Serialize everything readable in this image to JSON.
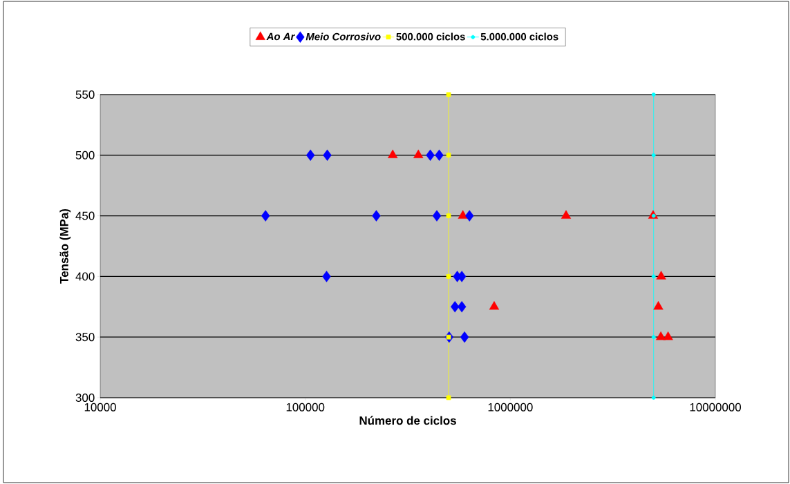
{
  "chart_data": {
    "type": "scatter",
    "xlabel": "Número de ciclos",
    "ylabel": "Tensão (MPa)",
    "log": "x",
    "xlim": [
      10000,
      10000000
    ],
    "xticks": [
      10000,
      100000,
      1000000,
      10000000
    ],
    "ylim": [
      300,
      550
    ],
    "yticks": [
      300,
      350,
      400,
      450,
      500,
      550
    ],
    "grid": "y",
    "legend": "top",
    "series": [
      {
        "name": "Ao Ar",
        "color": "#ff0000",
        "marker": "triangle",
        "x": [
          267000,
          356000,
          587000,
          1870000,
          4970000,
          5440000,
          834000,
          5270000,
          5420000,
          5880000
        ],
        "values": [
          500,
          500,
          450,
          450,
          450,
          400,
          375,
          375,
          350,
          350
        ]
      },
      {
        "name": "Meio Corrosivo",
        "color": "#0000ff",
        "marker": "diamond",
        "x": [
          106000,
          128000,
          407000,
          450000,
          64000,
          222000,
          438000,
          632000,
          127000,
          551000,
          580000,
          537000,
          580000,
          503000,
          598000
        ],
        "values": [
          500,
          500,
          500,
          500,
          450,
          450,
          450,
          450,
          400,
          400,
          400,
          375,
          375,
          350,
          350
        ]
      },
      {
        "name": "500.000 ciclos",
        "type": "line",
        "color": "#ffff00",
        "marker": "square",
        "x": [
          500000,
          500000,
          500000,
          500000,
          500000,
          500000
        ],
        "values": [
          300,
          350,
          400,
          450,
          500,
          550
        ]
      },
      {
        "name": "5.000.000 ciclos",
        "type": "line",
        "color": "#00ffff",
        "marker": "circle",
        "x": [
          5000000,
          5000000,
          5000000,
          5000000,
          5000000,
          5000000
        ],
        "values": [
          300,
          350,
          400,
          450,
          500,
          550
        ]
      }
    ]
  }
}
